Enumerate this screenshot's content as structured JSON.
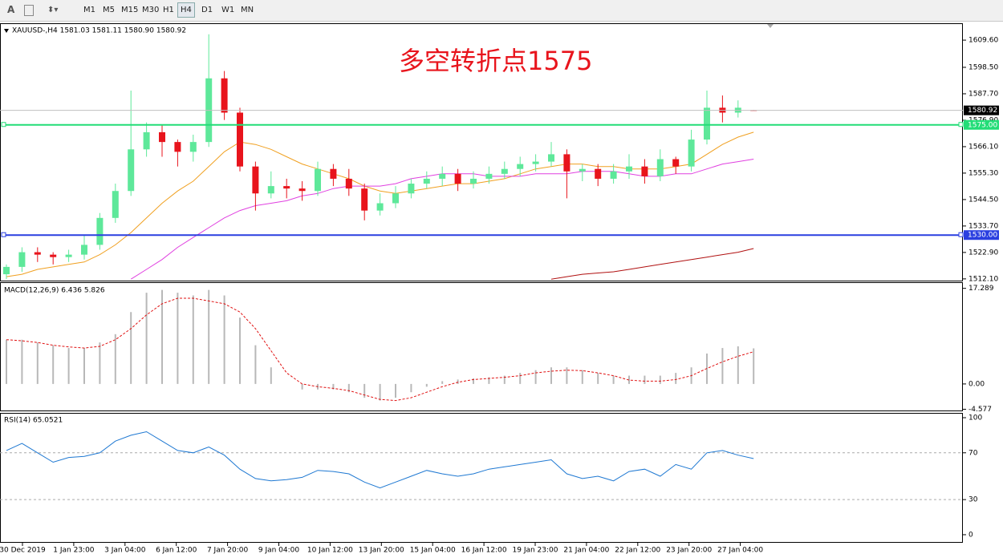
{
  "toolbar": {
    "items": [
      "A",
      "M1",
      "M5",
      "M15",
      "M30",
      "H1",
      "H4",
      "D1",
      "W1",
      "MN"
    ],
    "active": 6
  },
  "time_axis": [
    "30 Dec 2019",
    "1 Jan 23:00",
    "3 Jan 04:00",
    "6 Jan 12:00",
    "7 Jan 20:00",
    "9 Jan 04:00",
    "10 Jan 12:00",
    "13 Jan 20:00",
    "15 Jan 04:00",
    "16 Jan 12:00",
    "19 Jan 23:00",
    "21 Jan 04:00",
    "22 Jan 12:00",
    "23 Jan 20:00",
    "27 Jan 04:00"
  ],
  "chart_data": [
    {
      "type": "candlestick",
      "title": "XAUUSD-,H4  1581.03 1581.11 1580.90 1580.92",
      "annotation": "多空转折点1575",
      "up_color": "#5ee89a",
      "down_color": "#e8141c",
      "open": [
        1514,
        1517,
        1523,
        1522,
        1521,
        1522,
        1526,
        1537,
        1548,
        1565,
        1572,
        1568,
        1564,
        1568,
        1594,
        1580,
        1558,
        1547,
        1550,
        1549,
        1548,
        1557,
        1553,
        1549,
        1540,
        1543,
        1547,
        1551,
        1553,
        1555,
        1551,
        1553,
        1555,
        1557,
        1559,
        1560,
        1563,
        1556,
        1557,
        1553,
        1556,
        1558,
        1554,
        1561,
        1558,
        1569,
        1582,
        1580,
        1581.03
      ],
      "high": [
        1518,
        1525,
        1525,
        1523,
        1524,
        1530,
        1539,
        1551,
        1589,
        1576,
        1575,
        1569,
        1571,
        1612,
        1597,
        1582,
        1560,
        1556,
        1553,
        1552,
        1560,
        1559,
        1557,
        1551,
        1547,
        1550,
        1553,
        1556,
        1558,
        1557,
        1556,
        1558,
        1560,
        1562,
        1563,
        1568,
        1565,
        1559,
        1559,
        1559,
        1563,
        1561,
        1565,
        1562,
        1573,
        1589,
        1587,
        1585,
        1581.11
      ],
      "low": [
        1512,
        1515,
        1519,
        1518,
        1519,
        1520,
        1524,
        1535,
        1546,
        1562,
        1562,
        1558,
        1560,
        1566,
        1577,
        1556,
        1540,
        1545,
        1545,
        1544,
        1546,
        1550,
        1546,
        1536,
        1538,
        1541,
        1545,
        1549,
        1550,
        1548,
        1549,
        1551,
        1553,
        1554,
        1556,
        1558,
        1545,
        1552,
        1550,
        1551,
        1553,
        1551,
        1552,
        1555,
        1556,
        1567,
        1576,
        1578,
        1580.9
      ],
      "close": [
        1517,
        1523,
        1522,
        1521,
        1522,
        1526,
        1537,
        1548,
        1565,
        1572,
        1568,
        1564,
        1568,
        1594,
        1580,
        1558,
        1547,
        1550,
        1549,
        1548,
        1557,
        1553,
        1549,
        1540,
        1543,
        1547,
        1551,
        1553,
        1555,
        1551,
        1553,
        1555,
        1557,
        1559,
        1560,
        1563,
        1556,
        1557,
        1553,
        1556,
        1558,
        1554,
        1561,
        1558,
        1569,
        1582,
        1580,
        1582,
        1580.92
      ],
      "moving_averages": [
        {
          "color": "#f0a020",
          "values": [
            1513,
            1514,
            1516,
            1517,
            1518,
            1519,
            1522,
            1526,
            1531,
            1537,
            1543,
            1548,
            1552,
            1558,
            1564,
            1568,
            1567,
            1565,
            1562,
            1559,
            1557,
            1555,
            1553,
            1550,
            1548,
            1547,
            1548,
            1549,
            1550,
            1551,
            1551,
            1552,
            1553,
            1555,
            1557,
            1558,
            1559,
            1559,
            1558,
            1558,
            1557,
            1557,
            1557,
            1558,
            1559,
            1563,
            1567,
            1570,
            1572
          ]
        },
        {
          "color": "#e040e0",
          "values": [
            null,
            null,
            null,
            null,
            null,
            null,
            null,
            null,
            1512,
            1516,
            1520,
            1525,
            1529,
            1533,
            1537,
            1540,
            1542,
            1543,
            1544,
            1546,
            1547,
            1549,
            1550,
            1550,
            1550,
            1551,
            1553,
            1554,
            1555,
            1555,
            1555,
            1554,
            1554,
            1554,
            1555,
            1555,
            1555,
            1556,
            1556,
            1556,
            1555,
            1554,
            1554,
            1555,
            1555,
            1557,
            1559,
            1560,
            1561
          ]
        },
        {
          "color": "#b01010",
          "values": [
            null,
            null,
            null,
            null,
            null,
            null,
            null,
            null,
            null,
            null,
            null,
            null,
            null,
            null,
            null,
            null,
            null,
            null,
            null,
            null,
            null,
            null,
            null,
            null,
            null,
            null,
            null,
            null,
            null,
            null,
            null,
            null,
            null,
            null,
            null,
            1512,
            1513,
            1514,
            1514.5,
            1515,
            1516,
            1517,
            1518,
            1519,
            1520,
            1521,
            1522,
            1523,
            1524.5
          ]
        }
      ],
      "hlines": [
        {
          "value": 1575,
          "label": "1575.00",
          "color": "#22dd77"
        },
        {
          "value": 1530,
          "label": "1530.00",
          "color": "#2a3fe0"
        }
      ],
      "bid": 1580.92,
      "ylim": [
        1511.4,
        1616.5
      ],
      "yticks": [
        {
          "value": 1609.6,
          "label": "1609.60"
        },
        {
          "value": 1598.5,
          "label": "1598.50"
        },
        {
          "value": 1587.7,
          "label": "1587.70"
        },
        {
          "value": 1576.9,
          "label": "1576.90"
        },
        {
          "value": 1566.1,
          "label": "1566.10"
        },
        {
          "value": 1555.3,
          "label": "1555.30"
        },
        {
          "value": 1544.5,
          "label": "1544.50"
        },
        {
          "value": 1533.7,
          "label": "1533.70"
        },
        {
          "value": 1522.9,
          "label": "1522.90"
        },
        {
          "value": 1512.1,
          "label": "1512.10"
        }
      ]
    },
    {
      "type": "macd",
      "title": "MACD(12,26,9) 6.436 5.826",
      "values": [
        8,
        8,
        7.5,
        7,
        6.5,
        6.5,
        7.5,
        9,
        13,
        16.5,
        17,
        16.5,
        16,
        17,
        16,
        12,
        7,
        3,
        0,
        -1,
        -1,
        -1,
        -1.5,
        -2.5,
        -3,
        -2.5,
        -1.5,
        -0.5,
        0.5,
        0.8,
        1,
        1.2,
        1.5,
        2,
        2.5,
        3,
        3,
        2.5,
        2,
        1.5,
        1.5,
        1.5,
        1.5,
        2,
        3,
        5.5,
        6.5,
        6.8,
        6.436
      ],
      "signal": [
        8,
        7.8,
        7.5,
        7,
        6.7,
        6.5,
        6.8,
        8,
        10,
        12.5,
        14.5,
        15.5,
        15.5,
        15,
        14.5,
        13,
        10,
        6,
        2,
        0,
        -0.5,
        -0.8,
        -1.2,
        -2,
        -2.8,
        -3,
        -2.5,
        -1.5,
        -0.5,
        0.3,
        0.8,
        1,
        1.2,
        1.5,
        2,
        2.3,
        2.5,
        2.4,
        2,
        1.5,
        0.7,
        0.5,
        0.5,
        0.8,
        1.5,
        2.8,
        4,
        5,
        5.826
      ],
      "hist_color": "#b8b8b8",
      "signal_color": "#e01010",
      "ylim": [
        -4.8,
        18.4
      ],
      "yticks": [
        17.289,
        {
          "value": 0,
          "label": "0.00"
        },
        -4.577
      ]
    },
    {
      "type": "line",
      "title": "RSI(14) 65.0521",
      "values": [
        72,
        78,
        70,
        62,
        66,
        67,
        70,
        80,
        85,
        88,
        80,
        72,
        70,
        75,
        68,
        56,
        48,
        46,
        47,
        49,
        55,
        54,
        52,
        45,
        40,
        45,
        50,
        55,
        52,
        50,
        52,
        56,
        58,
        60,
        62,
        64,
        52,
        48,
        50,
        46,
        54,
        56,
        50,
        60,
        56,
        70,
        72,
        68,
        65.0521
      ],
      "color": "#1e78d2",
      "levels": [
        70,
        30
      ],
      "ylim": [
        -6.2,
        104.1
      ],
      "yticks": [
        100,
        70,
        30,
        0
      ]
    }
  ]
}
